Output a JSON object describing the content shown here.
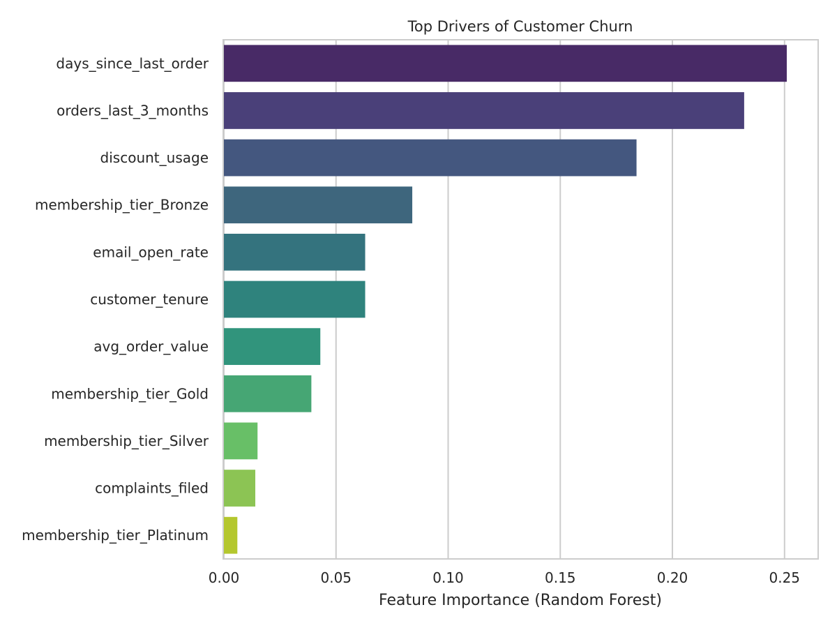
{
  "chart_data": {
    "type": "bar",
    "orientation": "horizontal",
    "title": "Top Drivers of Customer Churn",
    "xlabel": "Feature Importance (Random Forest)",
    "ylabel": "",
    "xlim": [
      0,
      0.265
    ],
    "xticks": [
      0.0,
      0.05,
      0.1,
      0.15,
      0.2,
      0.25
    ],
    "xtick_labels": [
      "0.00",
      "0.05",
      "0.10",
      "0.15",
      "0.20",
      "0.25"
    ],
    "grid": "vertical",
    "legend": "none",
    "categories": [
      "days_since_last_order",
      "orders_last_3_months",
      "discount_usage",
      "membership_tier_Bronze",
      "email_open_rate",
      "customer_tenure",
      "avg_order_value",
      "membership_tier_Gold",
      "membership_tier_Silver",
      "complaints_filed",
      "membership_tier_Platinum"
    ],
    "values": [
      0.251,
      0.232,
      0.184,
      0.084,
      0.063,
      0.063,
      0.043,
      0.039,
      0.015,
      0.014,
      0.006
    ],
    "colors": [
      "#482a66",
      "#4a4079",
      "#44577f",
      "#3e667d",
      "#34737e",
      "#2f837d",
      "#31947c",
      "#46a674",
      "#68bf67",
      "#8cc454",
      "#b4c72e"
    ]
  }
}
